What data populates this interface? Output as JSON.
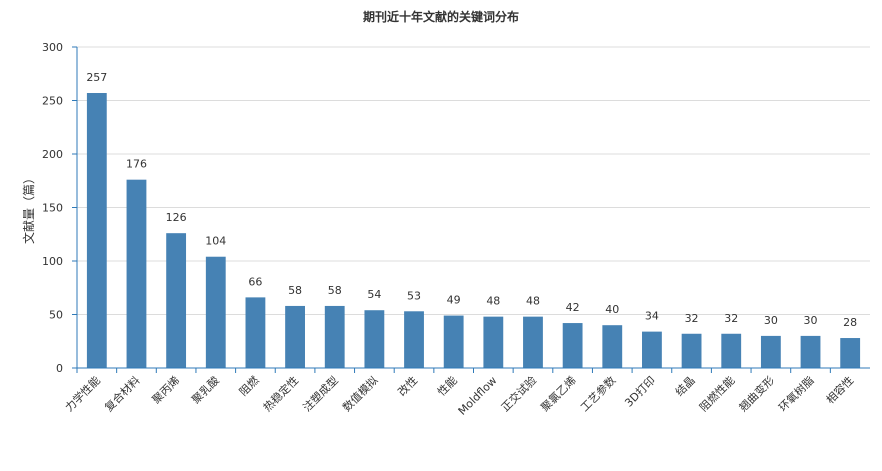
{
  "chart_data": {
    "type": "bar",
    "title": "期刊近十年文献的关键词分布",
    "xlabel": "",
    "ylabel": "文献量（篇）",
    "ylim": [
      0,
      300
    ],
    "yticks": [
      0,
      50,
      100,
      150,
      200,
      250,
      300
    ],
    "grid": true,
    "legend": "none",
    "bar_color": "#4682b4",
    "axis_color": "#2f7ab8",
    "categories": [
      "力学性能",
      "复合材料",
      "聚丙烯",
      "聚乳酸",
      "阻燃",
      "热稳定性",
      "注塑成型",
      "数值模拟",
      "改性",
      "性能",
      "Moldflow",
      "正交试验",
      "聚氯乙烯",
      "工艺参数",
      "3D打印",
      "结晶",
      "阻燃性能",
      "翘曲变形",
      "环氧树脂",
      "相容性"
    ],
    "values": [
      257,
      176,
      126,
      104,
      66,
      58,
      58,
      54,
      53,
      49,
      48,
      48,
      42,
      40,
      34,
      32,
      32,
      30,
      30,
      28
    ],
    "data_labels": [
      "257",
      "176",
      "126",
      "104",
      "66",
      "58",
      "58",
      "54",
      "53",
      "49",
      "48",
      "48",
      "42",
      "40",
      "34",
      "32",
      "32",
      "30",
      "30",
      "28"
    ]
  }
}
